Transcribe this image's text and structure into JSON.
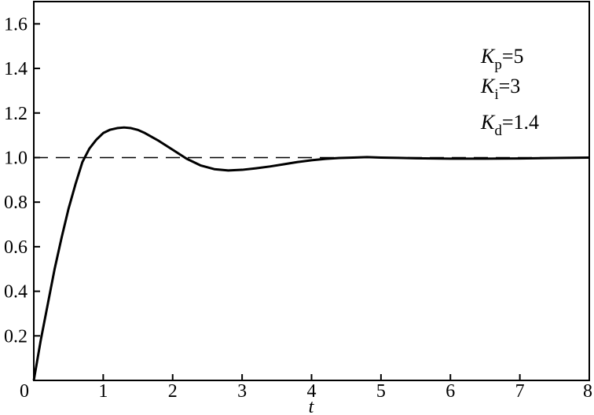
{
  "chart_data": {
    "type": "line",
    "title": "",
    "xlabel": "t",
    "ylabel": "",
    "xlim": [
      0,
      8
    ],
    "ylim": [
      0,
      1.7
    ],
    "grid": false,
    "x_ticks": [
      "0",
      "1",
      "2",
      "3",
      "4",
      "5",
      "6",
      "7",
      "8"
    ],
    "y_ticks": [
      "0.2",
      "0.4",
      "0.6",
      "0.8",
      "1.0",
      "1.2",
      "1.4",
      "1.6"
    ],
    "series": [
      {
        "style": "solid",
        "color": "#000000",
        "x": [
          0,
          0.1,
          0.2,
          0.3,
          0.4,
          0.5,
          0.6,
          0.7,
          0.8,
          0.9,
          1.0,
          1.1,
          1.2,
          1.3,
          1.4,
          1.5,
          1.6,
          1.8,
          2.0,
          2.2,
          2.4,
          2.6,
          2.8,
          3.0,
          3.2,
          3.4,
          3.6,
          3.8,
          4.0,
          4.2,
          4.4,
          4.6,
          4.8,
          5.0,
          5.5,
          6.0,
          6.5,
          7.0,
          7.5,
          8.0
        ],
        "y": [
          0,
          0.18,
          0.34,
          0.5,
          0.64,
          0.77,
          0.88,
          0.98,
          1.04,
          1.08,
          1.11,
          1.125,
          1.132,
          1.135,
          1.132,
          1.124,
          1.11,
          1.075,
          1.035,
          0.995,
          0.965,
          0.948,
          0.942,
          0.945,
          0.952,
          0.96,
          0.97,
          0.98,
          0.988,
          0.994,
          0.998,
          1.0,
          1.002,
          1.0,
          0.997,
          0.995,
          0.995,
          0.996,
          0.998,
          1.0
        ]
      },
      {
        "style": "dashed",
        "color": "#000000",
        "x": [
          0,
          8
        ],
        "y": [
          1.0,
          1.0
        ]
      }
    ],
    "annotations": [
      {
        "symbol": "K",
        "sub": "p",
        "value": "=5"
      },
      {
        "symbol": "K",
        "sub": "i",
        "value": "=3"
      },
      {
        "symbol": "K",
        "sub": "d",
        "value": "=1.4"
      }
    ]
  }
}
